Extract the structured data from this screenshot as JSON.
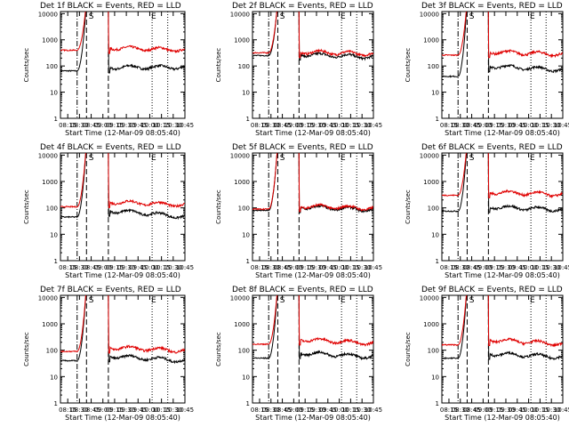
{
  "colors": {
    "background": "#ffffff",
    "axes": "#000000",
    "events": "#000000",
    "lld": "#e00000"
  },
  "common": {
    "ylabel": "Counts/sec",
    "xlabel": "Start Time (12-Mar-09 08:05:40)",
    "x_ticks": [
      "08:15",
      "08:30",
      "08:45",
      "09:00",
      "09:15",
      "09:30",
      "09:45",
      "10:00",
      "10:15",
      "10:30",
      "10:45"
    ],
    "y_ticks": [
      "1",
      "10",
      "100",
      "1000",
      "10000"
    ],
    "marker_labels": [
      "S",
      "E"
    ]
  },
  "chart_data": [
    {
      "type": "line",
      "title": "Det 1f BLACK = Events, RED = LLD",
      "panel": 1,
      "x_start": "08:05:40",
      "x_end": "10:45",
      "x_tick_labels": [
        "08:15",
        "08:30",
        "08:45",
        "09:00",
        "09:15",
        "09:30",
        "09:45",
        "10:00",
        "10:15",
        "10:30",
        "10:45"
      ],
      "y_scale": "log",
      "ylim": [
        1,
        12000
      ],
      "ylabel": "Counts/sec",
      "xlabel": "Start Time (12-Mar-09 08:05:40)",
      "markers": {
        "dash_dot_start": "08:27",
        "dash_start": "08:39",
        "saa_end": "08:45",
        "dash_end": "09:07",
        "dotted_1": "10:03",
        "dotted_2": "10:23",
        "E_label_time": "10:05"
      },
      "series": [
        {
          "name": "Events",
          "color": "#000000",
          "pre": 65,
          "post": 90,
          "late": 90
        },
        {
          "name": "LLD",
          "color": "#e00000",
          "pre": 400,
          "post": 500,
          "late": 410
        }
      ]
    },
    {
      "type": "line",
      "title": "Det 2f BLACK = Events, RED = LLD",
      "panel": 2,
      "x_start": "08:05:40",
      "x_end": "10:45",
      "x_tick_labels": [
        "08:15",
        "08:30",
        "08:45",
        "09:00",
        "09:15",
        "09:30",
        "09:45",
        "10:00",
        "10:15",
        "10:30",
        "10:45"
      ],
      "y_scale": "log",
      "ylim": [
        1,
        12000
      ],
      "ylabel": "Counts/sec",
      "xlabel": "Start Time (12-Mar-09 08:05:40)",
      "markers": {
        "dash_dot_start": "08:27",
        "dash_start": "08:39",
        "saa_end": "08:45",
        "dash_end": "09:07",
        "dotted_1": "10:03",
        "dotted_2": "10:23",
        "E_label_time": "10:05"
      },
      "series": [
        {
          "name": "Events",
          "color": "#000000",
          "pre": 250,
          "post": 280,
          "late": 220
        },
        {
          "name": "LLD",
          "color": "#e00000",
          "pre": 320,
          "post": 350,
          "late": 290
        }
      ]
    },
    {
      "type": "line",
      "title": "Det 3f BLACK = Events, RED = LLD",
      "panel": 3,
      "x_start": "08:05:40",
      "x_end": "10:45",
      "x_tick_labels": [
        "08:15",
        "08:30",
        "08:45",
        "09:00",
        "09:15",
        "09:30",
        "09:45",
        "10:00",
        "10:15",
        "10:30",
        "10:45"
      ],
      "y_scale": "log",
      "ylim": [
        1,
        12000
      ],
      "ylabel": "Counts/sec",
      "xlabel": "Start Time (12-Mar-09 08:05:40)",
      "markers": {
        "dash_dot_start": "08:27",
        "dash_start": "08:39",
        "saa_end": "08:45",
        "dash_end": "09:07",
        "dotted_1": "10:03",
        "dotted_2": "10:23",
        "E_label_time": "10:05"
      },
      "series": [
        {
          "name": "Events",
          "color": "#000000",
          "pre": 40,
          "post": 100,
          "late": 70
        },
        {
          "name": "LLD",
          "color": "#e00000",
          "pre": 260,
          "post": 350,
          "late": 280
        }
      ]
    },
    {
      "type": "line",
      "title": "Det 4f BLACK = Events, RED = LLD",
      "panel": 4,
      "x_start": "08:05:40",
      "x_end": "10:45",
      "x_tick_labels": [
        "08:15",
        "08:30",
        "08:45",
        "09:00",
        "09:15",
        "09:30",
        "09:45",
        "10:00",
        "10:15",
        "10:30",
        "10:45"
      ],
      "y_scale": "log",
      "ylim": [
        1,
        12000
      ],
      "ylabel": "Counts/sec",
      "xlabel": "Start Time (12-Mar-09 08:05:40)",
      "markers": {
        "dash_dot_start": "08:27",
        "dash_start": "08:39",
        "saa_end": "08:45",
        "dash_end": "09:07",
        "dotted_1": "10:03",
        "dotted_2": "10:23",
        "E_label_time": "10:05"
      },
      "series": [
        {
          "name": "Events",
          "color": "#000000",
          "pre": 45,
          "post": 80,
          "late": 45
        },
        {
          "name": "LLD",
          "color": "#e00000",
          "pre": 110,
          "post": 170,
          "late": 130
        }
      ]
    },
    {
      "type": "line",
      "title": "Det 5f BLACK = Events, RED = LLD",
      "panel": 5,
      "x_start": "08:05:40",
      "x_end": "10:45",
      "x_tick_labels": [
        "08:15",
        "08:30",
        "08:45",
        "09:00",
        "09:15",
        "09:30",
        "09:45",
        "10:00",
        "10:15",
        "10:30",
        "10:45"
      ],
      "y_scale": "log",
      "ylim": [
        1,
        12000
      ],
      "ylabel": "Counts/sec",
      "xlabel": "Start Time (12-Mar-09 08:05:40)",
      "markers": {
        "dash_dot_start": "08:27",
        "dash_start": "08:39",
        "saa_end": "08:45",
        "dash_end": "09:07",
        "dotted_1": "10:03",
        "dotted_2": "10:23",
        "E_label_time": "10:05"
      },
      "series": [
        {
          "name": "Events",
          "color": "#000000",
          "pre": 80,
          "post": 110,
          "late": 85
        },
        {
          "name": "LLD",
          "color": "#e00000",
          "pre": 90,
          "post": 120,
          "late": 95
        }
      ]
    },
    {
      "type": "line",
      "title": "Det 6f BLACK = Events, RED = LLD",
      "panel": 6,
      "x_start": "08:05:40",
      "x_end": "10:45",
      "x_tick_labels": [
        "08:15",
        "08:30",
        "08:45",
        "09:00",
        "09:15",
        "09:30",
        "09:45",
        "10:00",
        "10:15",
        "10:30",
        "10:45"
      ],
      "y_scale": "log",
      "ylim": [
        1,
        12000
      ],
      "ylabel": "Counts/sec",
      "xlabel": "Start Time (12-Mar-09 08:05:40)",
      "markers": {
        "dash_dot_start": "08:27",
        "dash_start": "08:39",
        "saa_end": "08:45",
        "dash_end": "09:07",
        "dotted_1": "10:03",
        "dotted_2": "10:23",
        "E_label_time": "10:05"
      },
      "series": [
        {
          "name": "Events",
          "color": "#000000",
          "pre": 75,
          "post": 110,
          "late": 85
        },
        {
          "name": "LLD",
          "color": "#e00000",
          "pre": 300,
          "post": 400,
          "late": 320
        }
      ]
    },
    {
      "type": "line",
      "title": "Det 7f BLACK = Events, RED = LLD",
      "panel": 7,
      "x_start": "08:05:40",
      "x_end": "10:45",
      "x_tick_labels": [
        "08:15",
        "08:30",
        "08:45",
        "09:00",
        "09:15",
        "09:30",
        "09:45",
        "10:00",
        "10:15",
        "10:30",
        "10:45"
      ],
      "y_scale": "log",
      "ylim": [
        1,
        12000
      ],
      "ylabel": "Counts/sec",
      "xlabel": "Start Time (12-Mar-09 08:05:40)",
      "markers": {
        "dash_dot_start": "08:27",
        "dash_start": "08:39",
        "saa_end": "08:45",
        "dash_end": "09:07",
        "dotted_1": "10:03",
        "dotted_2": "10:23",
        "E_label_time": "10:05"
      },
      "series": [
        {
          "name": "Events",
          "color": "#000000",
          "pre": 40,
          "post": 60,
          "late": 40
        },
        {
          "name": "LLD",
          "color": "#e00000",
          "pre": 90,
          "post": 130,
          "late": 95
        }
      ]
    },
    {
      "type": "line",
      "title": "Det 8f BLACK = Events, RED = LLD",
      "panel": 8,
      "x_start": "08:05:40",
      "x_end": "10:45",
      "x_tick_labels": [
        "08:15",
        "08:30",
        "08:45",
        "09:00",
        "09:15",
        "09:30",
        "09:45",
        "10:00",
        "10:15",
        "10:30",
        "10:45"
      ],
      "y_scale": "log",
      "ylim": [
        1,
        12000
      ],
      "ylabel": "Counts/sec",
      "xlabel": "Start Time (12-Mar-09 08:05:40)",
      "markers": {
        "dash_dot_start": "08:27",
        "dash_start": "08:39",
        "saa_end": "08:45",
        "dash_end": "09:07",
        "dotted_1": "10:03",
        "dotted_2": "10:23",
        "E_label_time": "10:05"
      },
      "series": [
        {
          "name": "Events",
          "color": "#000000",
          "pre": 50,
          "post": 80,
          "late": 55
        },
        {
          "name": "LLD",
          "color": "#e00000",
          "pre": 170,
          "post": 260,
          "late": 180
        }
      ]
    },
    {
      "type": "line",
      "title": "Det 9f BLACK = Events, RED = LLD",
      "panel": 9,
      "x_start": "08:05:40",
      "x_end": "10:45",
      "x_tick_labels": [
        "08:15",
        "08:30",
        "08:45",
        "09:00",
        "09:15",
        "09:30",
        "09:45",
        "10:00",
        "10:15",
        "10:30",
        "10:45"
      ],
      "y_scale": "log",
      "ylim": [
        1,
        12000
      ],
      "ylabel": "Counts/sec",
      "xlabel": "Start Time (12-Mar-09 08:05:40)",
      "markers": {
        "dash_dot_start": "08:27",
        "dash_start": "08:39",
        "saa_end": "08:45",
        "dash_end": "09:07",
        "dotted_1": "10:03",
        "dotted_2": "10:23",
        "E_label_time": "10:05"
      },
      "series": [
        {
          "name": "Events",
          "color": "#000000",
          "pre": 50,
          "post": 75,
          "late": 55
        },
        {
          "name": "LLD",
          "color": "#e00000",
          "pre": 160,
          "post": 250,
          "late": 170
        }
      ]
    }
  ]
}
